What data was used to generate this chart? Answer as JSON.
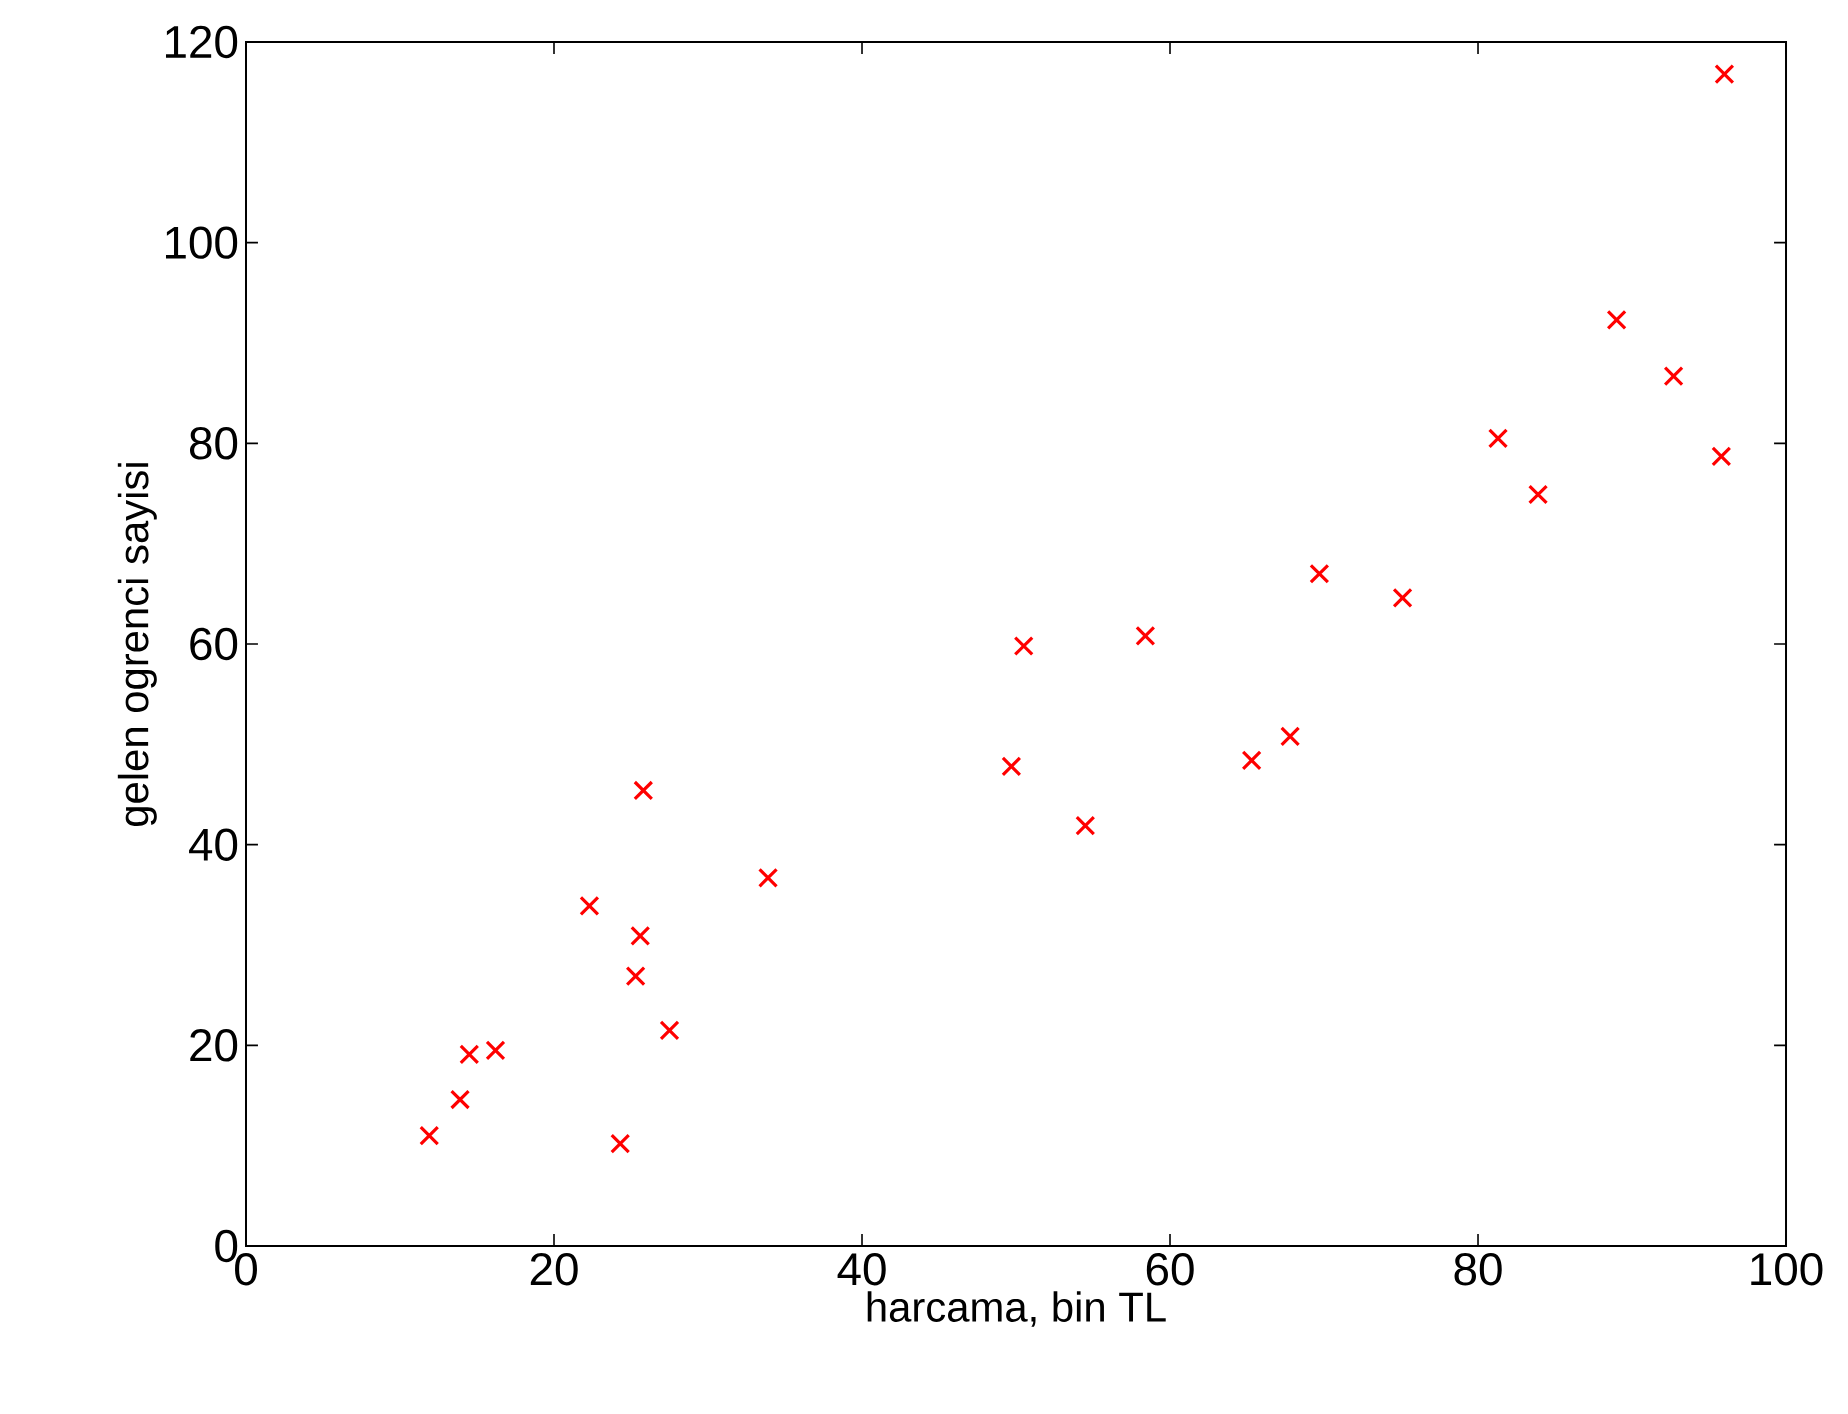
{
  "chart_data": {
    "type": "scatter",
    "xlabel": "harcama, bin TL",
    "ylabel": "gelen ogrenci sayisi",
    "series": [
      {
        "color": "#ff0000",
        "x": [
          11.9,
          13.9,
          14.5,
          16.2,
          22.3,
          25.6,
          25.3,
          27.5,
          24.3,
          25.8,
          33.9,
          50.5,
          58.4,
          49.7,
          54.5,
          65.3,
          67.8,
          69.7,
          75.1,
          96.0,
          89.0,
          92.7,
          81.3,
          83.9,
          95.8
        ],
        "values": [
          11.0,
          14.6,
          19.1,
          19.5,
          33.9,
          30.9,
          26.9,
          21.5,
          10.2,
          45.4,
          36.7,
          59.8,
          60.8,
          47.8,
          41.9,
          48.4,
          50.8,
          67.0,
          64.6,
          116.8,
          92.3,
          86.7,
          80.5,
          74.9,
          78.7
        ]
      }
    ],
    "marker": "cross",
    "xlim": [
      0,
      100
    ],
    "ylim": [
      0,
      120
    ],
    "xticks": [
      0,
      20,
      40,
      60,
      80,
      100
    ],
    "yticks": [
      0,
      20,
      40,
      60,
      80,
      100,
      120
    ],
    "grid": false
  }
}
